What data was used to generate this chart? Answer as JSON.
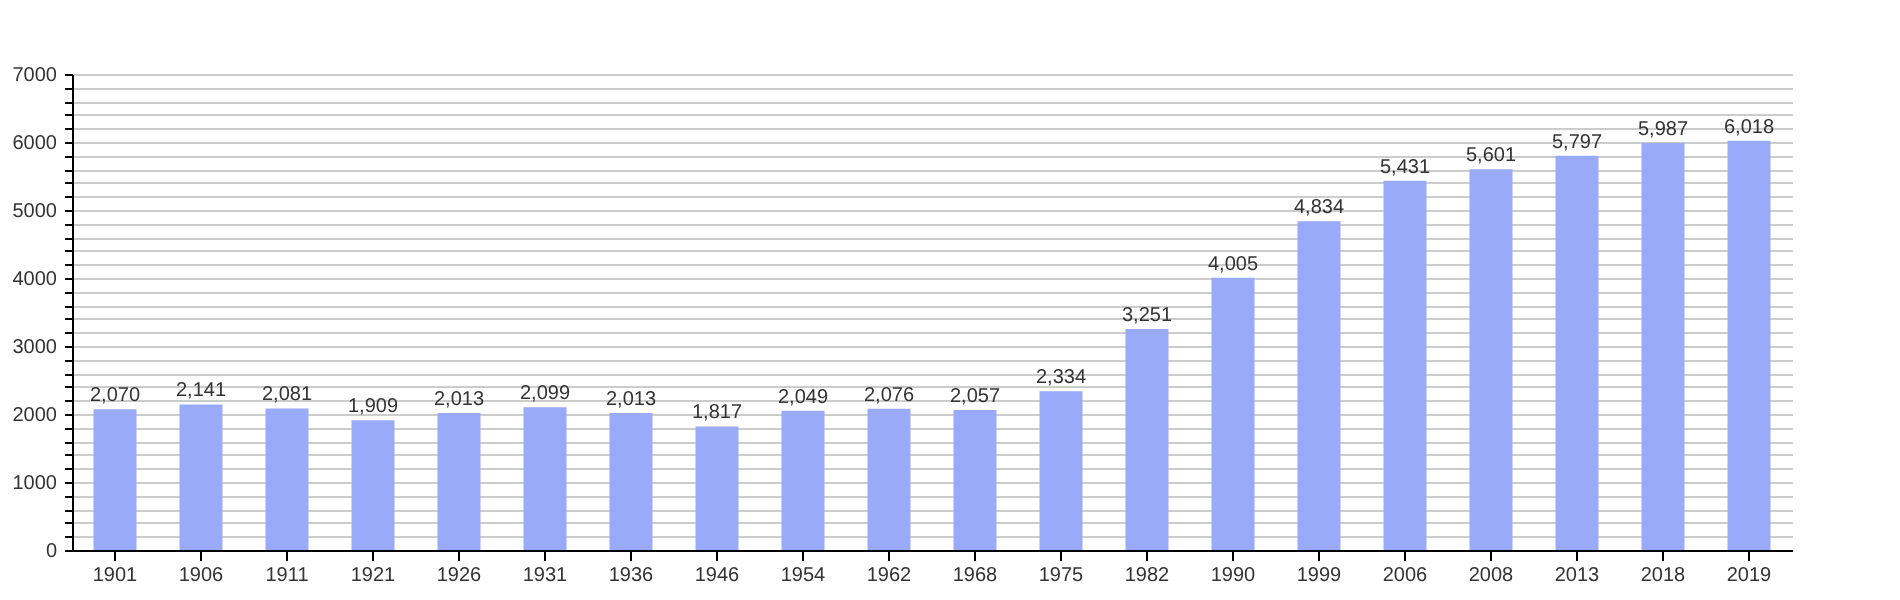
{
  "chart_data": {
    "type": "bar",
    "categories": [
      "1901",
      "1906",
      "1911",
      "1921",
      "1926",
      "1931",
      "1936",
      "1946",
      "1954",
      "1962",
      "1968",
      "1975",
      "1982",
      "1990",
      "1999",
      "2006",
      "2008",
      "2013",
      "2018",
      "2019"
    ],
    "values": [
      2070,
      2141,
      2081,
      1909,
      2013,
      2099,
      2013,
      1817,
      2049,
      2076,
      2057,
      2334,
      3251,
      4005,
      4834,
      5431,
      5601,
      5797,
      5987,
      6018
    ],
    "value_labels": [
      "2,070",
      "2,141",
      "2,081",
      "1,909",
      "2,013",
      "2,099",
      "2,013",
      "1,817",
      "2,049",
      "2,076",
      "2,057",
      "2,334",
      "3,251",
      "4,005",
      "4,834",
      "5,431",
      "5,601",
      "5,797",
      "5,987",
      "6,018"
    ],
    "color": "#99aaf8",
    "ylim": [
      0,
      7000
    ],
    "yticks": [
      0,
      {
        "value": 200,
        "label": null
      },
      {
        "value": 400,
        "label": null
      },
      {
        "value": 600,
        "label": null
      },
      {
        "value": 800,
        "label": null
      },
      1000,
      {
        "value": 1200,
        "label": null
      },
      {
        "value": 1400,
        "label": null
      },
      {
        "value": 1600,
        "label": null
      },
      {
        "value": 1800,
        "label": null
      },
      2000,
      {
        "value": 2200,
        "label": null
      },
      {
        "value": 2400,
        "label": null
      },
      {
        "value": 2600,
        "label": null
      },
      {
        "value": 2800,
        "label": null
      },
      3000,
      {
        "value": 3200,
        "label": null
      },
      {
        "value": 3400,
        "label": null
      },
      {
        "value": 3600,
        "label": null
      },
      {
        "value": 3800,
        "label": null
      },
      4000,
      {
        "value": 4200,
        "label": null
      },
      {
        "value": 4400,
        "label": null
      },
      {
        "value": 4600,
        "label": null
      },
      {
        "value": 4800,
        "label": null
      },
      5000,
      {
        "value": 5200,
        "label": null
      },
      {
        "value": 5400,
        "label": null
      },
      {
        "value": 5600,
        "label": null
      },
      {
        "value": 5800,
        "label": null
      },
      6000,
      {
        "value": 6200,
        "label": null
      },
      {
        "value": 6400,
        "label": null
      },
      {
        "value": 6600,
        "label": null
      },
      {
        "value": 6800,
        "label": null
      },
      7000
    ],
    "grid": "y"
  }
}
